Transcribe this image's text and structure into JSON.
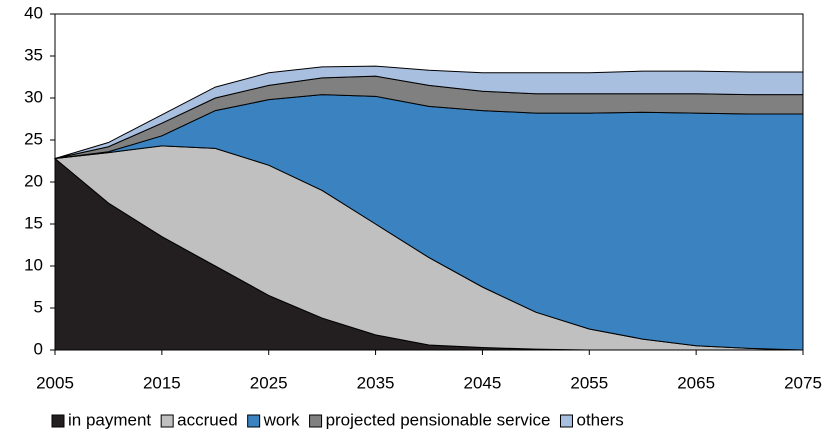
{
  "chart_data": {
    "type": "stacked-area",
    "x": [
      2005,
      2010,
      2015,
      2020,
      2025,
      2030,
      2035,
      2040,
      2045,
      2050,
      2055,
      2060,
      2065,
      2070,
      2075
    ],
    "series": [
      {
        "name": "in payment",
        "color": "#231f20",
        "values": [
          22.8,
          17.5,
          13.5,
          10,
          6.5,
          3.8,
          1.8,
          0.6,
          0.3,
          0.1,
          0,
          0,
          0,
          0,
          0
        ]
      },
      {
        "name": "accrued",
        "color": "#c0c0c0",
        "values": [
          0,
          6,
          10.8,
          14,
          15.5,
          15.2,
          13.2,
          10.4,
          7.2,
          4.4,
          2.5,
          1.3,
          0.5,
          0.2,
          0
        ]
      },
      {
        "name": "work",
        "color": "#3a82c0",
        "values": [
          0,
          0.1,
          1.2,
          4.5,
          7.8,
          11.4,
          15.2,
          18,
          21,
          23.7,
          25.7,
          27,
          27.7,
          27.9,
          28.1
        ]
      },
      {
        "name": "projected pensionable service",
        "color": "#808080",
        "values": [
          0,
          0.6,
          1.5,
          1.5,
          1.7,
          2.0,
          2.4,
          2.5,
          2.3,
          2.3,
          2.3,
          2.2,
          2.3,
          2.3,
          2.3
        ]
      },
      {
        "name": "others",
        "color": "#a9bfe0",
        "values": [
          0,
          0.5,
          1.0,
          1.3,
          1.5,
          1.3,
          1.2,
          1.8,
          2.2,
          2.5,
          2.5,
          2.7,
          2.7,
          2.7,
          2.7
        ]
      }
    ],
    "xlim": [
      2005,
      2075
    ],
    "xticks": [
      2005,
      2015,
      2025,
      2035,
      2045,
      2055,
      2065,
      2075
    ],
    "ylim": [
      0,
      40
    ],
    "yticks": [
      0,
      5,
      10,
      15,
      20,
      25,
      30,
      35,
      40
    ],
    "grid": false,
    "legend": "bottom"
  }
}
